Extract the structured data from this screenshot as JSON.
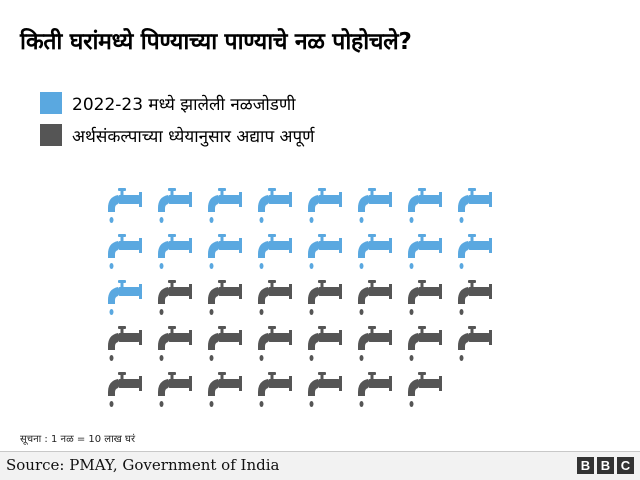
{
  "colors": {
    "connected": "#5aa8e0",
    "pending": "#555555"
  },
  "chart_data": {
    "type": "pictogram",
    "title": "किती घरांमध्ये पिण्याच्या पाण्याचे नळ पोहोचले?",
    "icon": "tap-icon",
    "icons_per_row": 8,
    "series": [
      {
        "name": "2022-23 मध्ये झालेली नळजोडणी",
        "icons": 17,
        "color": "#5aa8e0"
      },
      {
        "name": "अर्थसंकल्पाच्या ध्येयानुसार अद्याप अपूर्ण",
        "icons": 22,
        "color": "#555555"
      }
    ],
    "note": "सूचना : 1 नळ = 10 लाख घरं"
  },
  "footer": {
    "source": "Source: PMAY, Government of India",
    "logo": [
      "B",
      "B",
      "C"
    ]
  }
}
